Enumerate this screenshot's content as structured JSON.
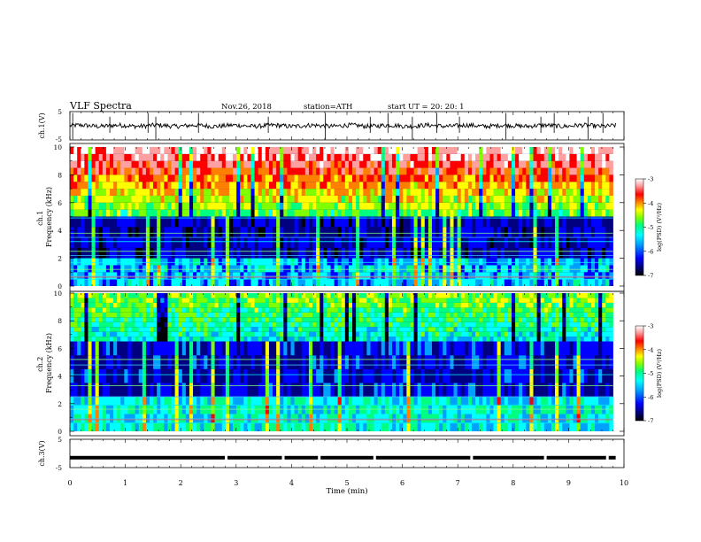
{
  "header": {
    "title": "VLF  Spectra",
    "date": "Nov.26, 2018",
    "station": "station=ATH",
    "start": "start  UT  =    20: 20: 1"
  },
  "colors": {
    "spectrogram_scale": [
      "#000000",
      "#000080",
      "#0000ff",
      "#00a0ff",
      "#00ffff",
      "#00ff80",
      "#80ff00",
      "#ffff00",
      "#ff8000",
      "#ff0000",
      "#ffa0a0",
      "#ffffff"
    ],
    "waveform": "#000000",
    "frame": "#000000"
  },
  "chart_data": [
    {
      "type": "line",
      "name": "ch1-waveform",
      "ylabel": "ch.1(V)",
      "ylim": [
        -5,
        5
      ],
      "yticks": [
        "5",
        "-5"
      ],
      "xlim": [
        0,
        10
      ],
      "baseline_value": 0,
      "noise_amplitude": 0.8,
      "spike_times": [
        0.05,
        0.72,
        1.41,
        1.55,
        2.32,
        3.58,
        4.61,
        5.42,
        5.74,
        6.18,
        6.62,
        7.03,
        7.87,
        8.5,
        8.74,
        9.35,
        9.62
      ]
    },
    {
      "type": "heatmap",
      "name": "ch1-spectrogram",
      "ylabel": "ch.1\nFrequency  (kHz)",
      "xlim": [
        0,
        9.8
      ],
      "ylim": [
        0,
        10
      ],
      "yticks": [
        "0",
        "2",
        "4",
        "6",
        "8",
        "10"
      ],
      "colorbar": {
        "label": "log(PSD) (V²/Hz)",
        "range": [
          -7,
          -3
        ],
        "ticks": [
          "-3",
          "-4",
          "-5",
          "-6",
          "-7"
        ]
      },
      "high_band_khz": [
        5,
        10
      ],
      "high_band_log_psd": [
        -5,
        -3.2
      ],
      "mid_band_khz": [
        2,
        5
      ],
      "mid_band_log_psd": -6.5,
      "low_band_khz": [
        0,
        2
      ],
      "low_band_log_psd": -5.8,
      "tone_lines_khz": [
        0.5,
        0.7,
        1.2,
        1.7,
        2.2,
        2.5,
        3.2,
        3.5,
        3.8,
        4.9
      ]
    },
    {
      "type": "heatmap",
      "name": "ch2-spectrogram",
      "ylabel": "ch.2\nFrequency  (kHz)",
      "xlim": [
        0,
        9.8
      ],
      "ylim": [
        0,
        10
      ],
      "yticks": [
        "0",
        "2",
        "4",
        "6",
        "8",
        "10"
      ],
      "colorbar": {
        "label": "log(PSD) (V²/Hz)",
        "range": [
          -7,
          -3
        ],
        "ticks": [
          "-3",
          "-4",
          "-5",
          "-6",
          "-7"
        ]
      },
      "high_band_khz": [
        6.5,
        10
      ],
      "high_band_log_psd": [
        -5.5,
        -4.8
      ],
      "mid_band_khz": [
        2.5,
        6.5
      ],
      "mid_band_log_psd": -6.4,
      "low_band_khz": [
        0,
        2.5
      ],
      "low_band_log_psd": -5.5,
      "tone_lines_khz": [
        0.6,
        0.9,
        1.6,
        1.9,
        2.5,
        3.3,
        4.1,
        4.8,
        5.2
      ]
    },
    {
      "type": "line",
      "name": "ch3-waveform",
      "ylabel": "ch.3(V)",
      "ylim": [
        -5,
        5
      ],
      "yticks": [
        "5",
        "-5"
      ],
      "xlim": [
        0,
        10
      ],
      "xlabel": "Time  (min)",
      "xticks": [
        "0",
        "1",
        "2",
        "3",
        "4",
        "5",
        "6",
        "7",
        "8",
        "9",
        "10"
      ],
      "value": -1.5,
      "gap_times": [
        2.82,
        3.85,
        4.5,
        5.5,
        7.25,
        8.58,
        9.7
      ]
    }
  ]
}
